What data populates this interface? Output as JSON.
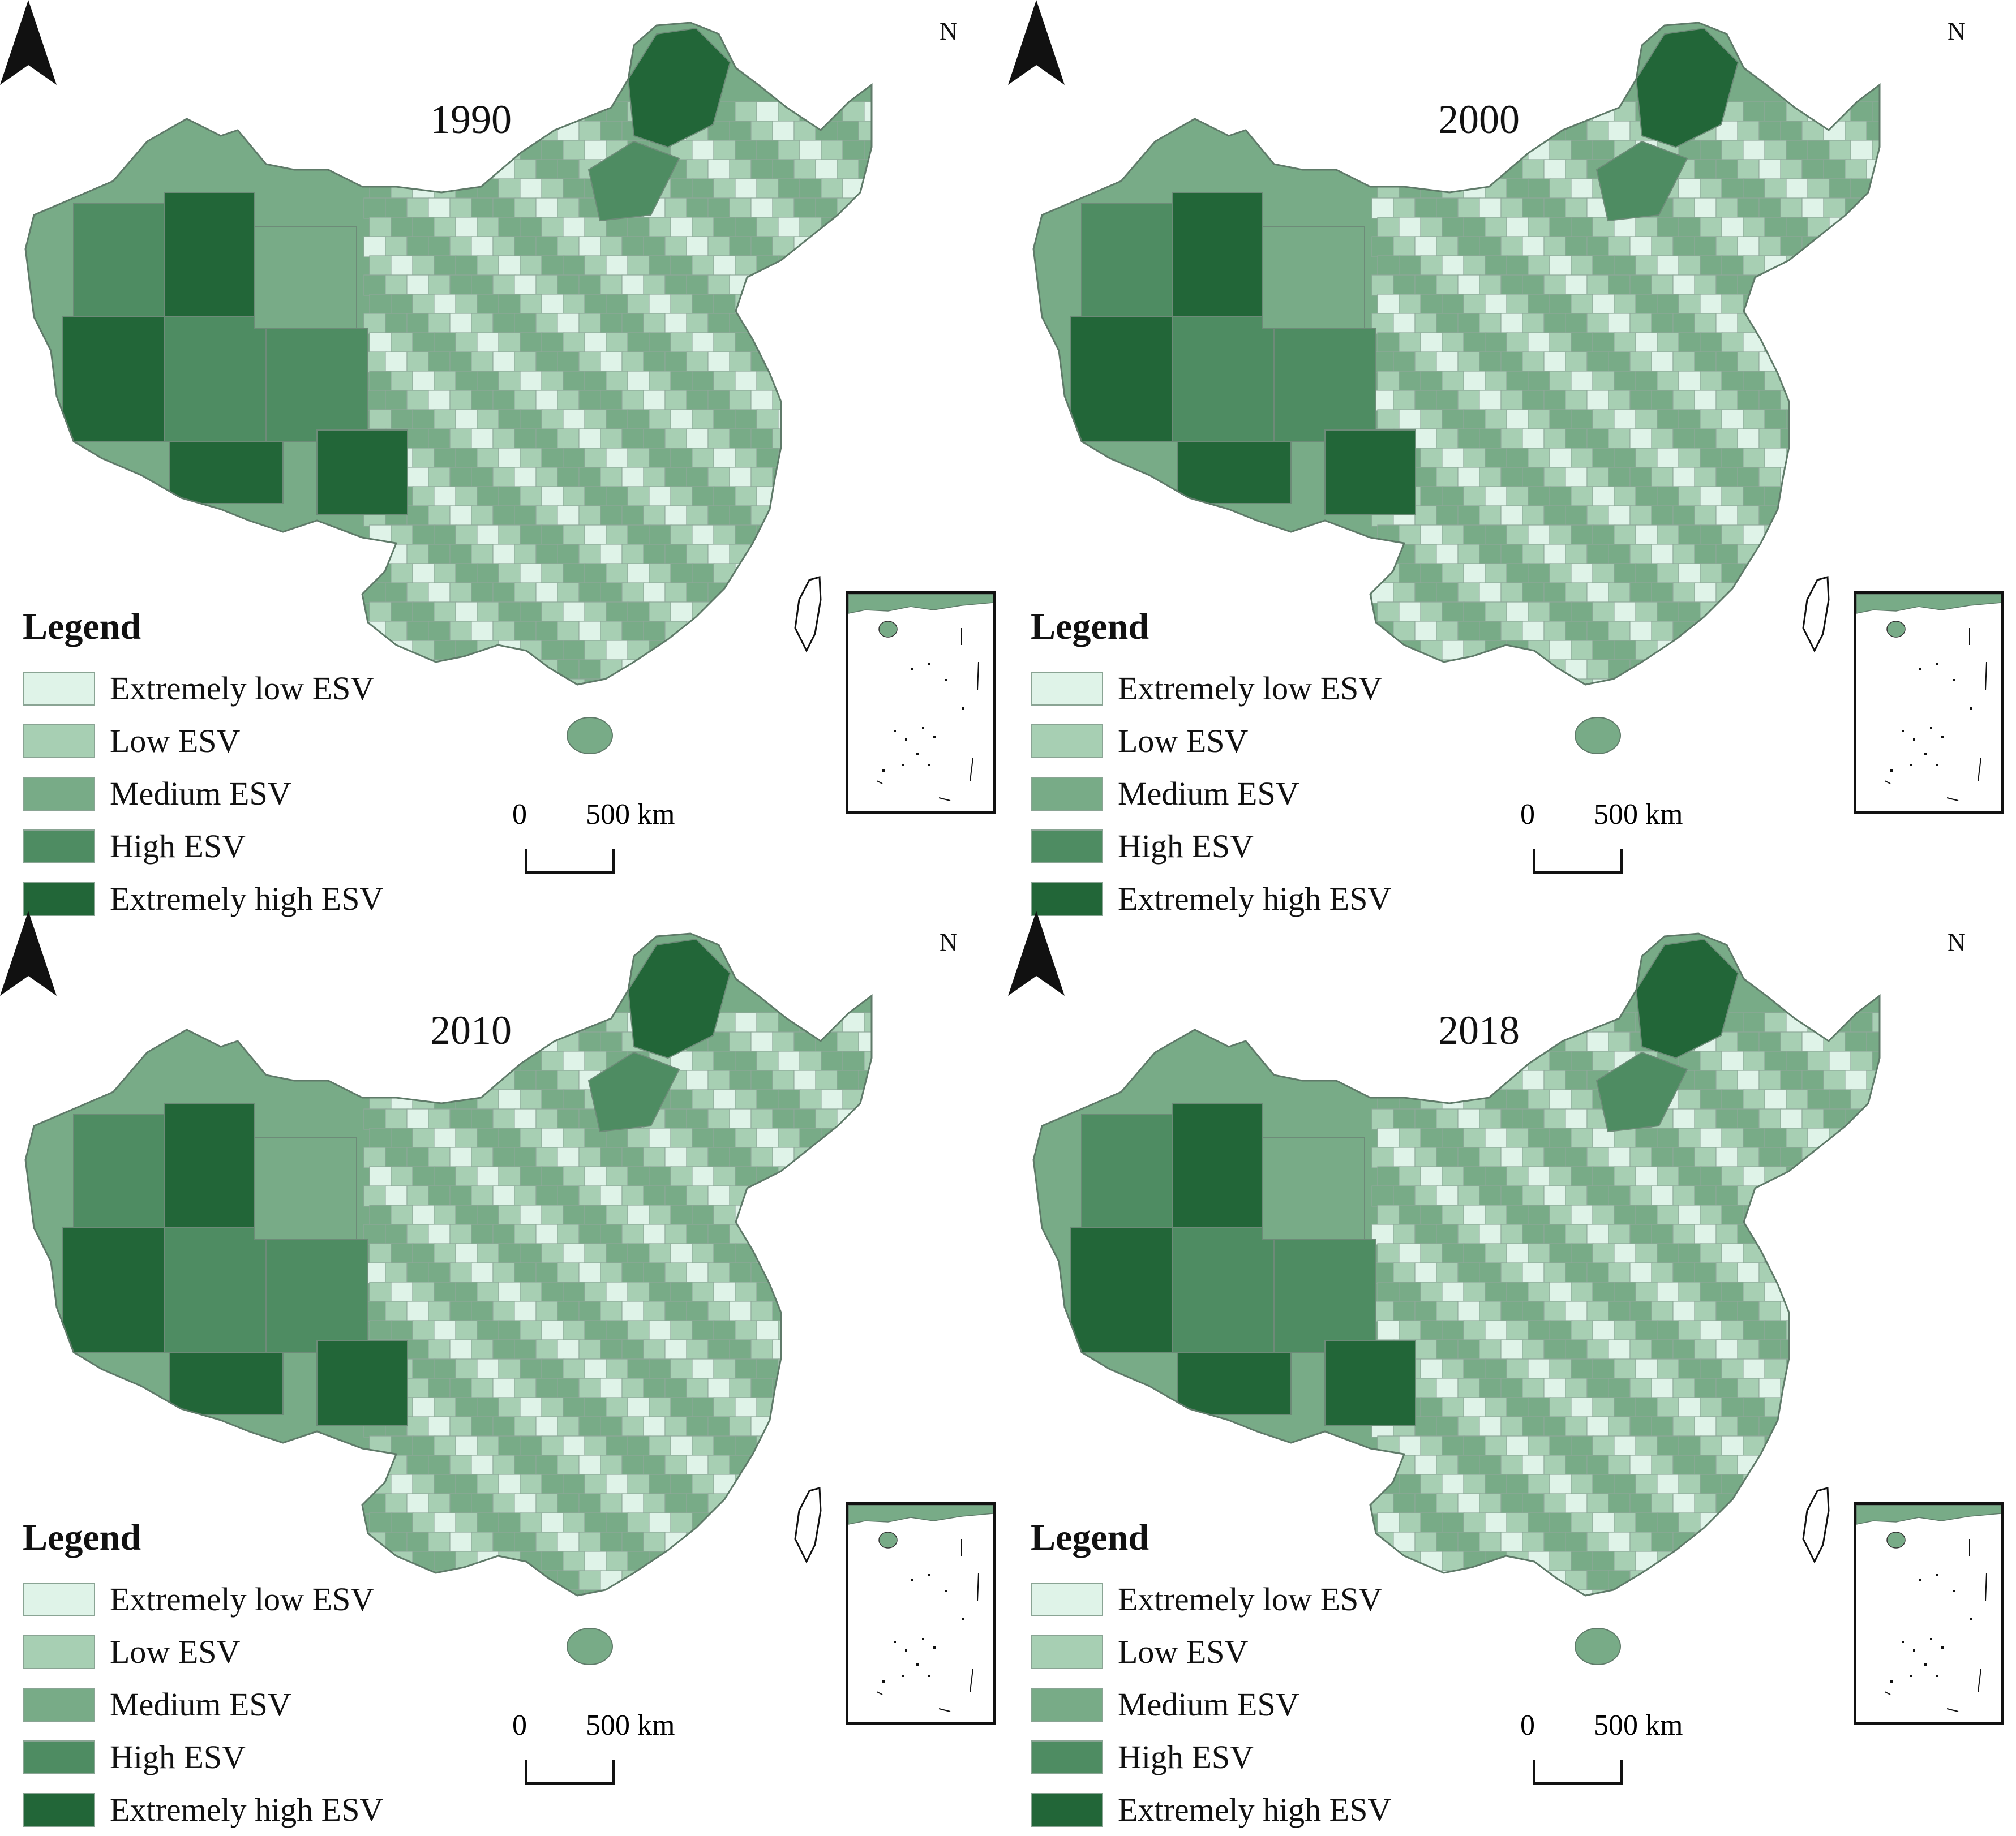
{
  "legend": {
    "title": "Legend",
    "classes": [
      {
        "label": "Extremely low ESV",
        "color": "#dff3e8"
      },
      {
        "label": "Low ESV",
        "color": "#a7cfb3"
      },
      {
        "label": "Medium ESV",
        "color": "#78ab87"
      },
      {
        "label": "High ESV",
        "color": "#4e8c62"
      },
      {
        "label": "Extremely high ESV",
        "color": "#226638"
      }
    ]
  },
  "north_label": "N",
  "scale": {
    "zero": "0",
    "distance": "500 km"
  },
  "panels": [
    {
      "year": "1990"
    },
    {
      "year": "2000"
    },
    {
      "year": "2010"
    },
    {
      "year": "2018"
    }
  ]
}
